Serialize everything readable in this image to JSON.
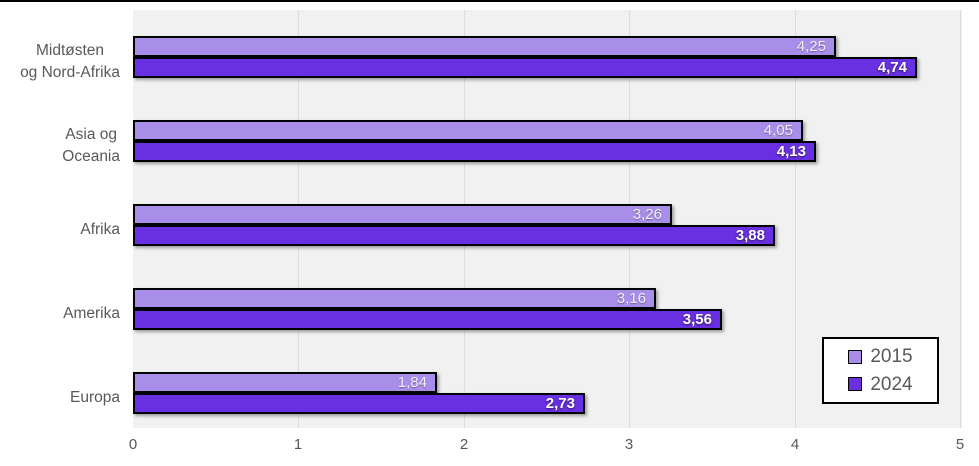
{
  "chart": {
    "rows": [
      {
        "category": "Midtøsten og Nord-Afrika",
        "label_display": "Midtøsten\nog Nord-Afrika",
        "values": [
          4.25,
          4.74
        ],
        "value_labels": [
          "4,25",
          "4,74"
        ]
      },
      {
        "category": "Asia og Oceania",
        "label_display": "Asia og\nOceania",
        "values": [
          4.05,
          4.13
        ],
        "value_labels": [
          "4,05",
          "4,13"
        ]
      },
      {
        "category": "Afrika",
        "label_display": "Afrika",
        "values": [
          3.26,
          3.88
        ],
        "value_labels": [
          "3,26",
          "3,88"
        ]
      },
      {
        "category": "Amerika",
        "label_display": "Amerika",
        "values": [
          3.16,
          3.56
        ],
        "value_labels": [
          "3,16",
          "3,56"
        ]
      },
      {
        "category": "Europa",
        "label_display": "Europa",
        "values": [
          1.84,
          2.73
        ],
        "value_labels": [
          "1,84",
          "2,73"
        ]
      }
    ],
    "legend": [
      {
        "label": "2015",
        "color": "#a88ee9"
      },
      {
        "label": "2024",
        "color": "#6930e2"
      }
    ],
    "x_tick_labels": [
      "0",
      "1",
      "2",
      "3",
      "4",
      "5"
    ]
  },
  "chart_data": {
    "type": "bar",
    "orientation": "horizontal",
    "title": "",
    "xlabel": "",
    "ylabel": "",
    "categories": [
      "Midtøsten og Nord-Afrika",
      "Asia og Oceania",
      "Afrika",
      "Amerika",
      "Europa"
    ],
    "series": [
      {
        "name": "2015",
        "values": [
          4.25,
          4.05,
          3.26,
          3.16,
          1.84
        ],
        "color": "#a88ee9"
      },
      {
        "name": "2024",
        "values": [
          4.74,
          4.13,
          3.88,
          3.56,
          2.73
        ],
        "color": "#6930e2"
      }
    ],
    "value_labels": {
      "2015": [
        "4,25",
        "4,05",
        "3,26",
        "3,16",
        "1,84"
      ],
      "2024": [
        "4,74",
        "4,13",
        "3,88",
        "3,56",
        "2,73"
      ]
    },
    "xlim": [
      0,
      5
    ],
    "xticks": [
      0,
      1,
      2,
      3,
      4,
      5
    ],
    "grid": true,
    "decimal_separator": ",",
    "legend_position": "inside-bottom-right",
    "plot_background": "#f1f1f1",
    "text_color": "#595959"
  }
}
